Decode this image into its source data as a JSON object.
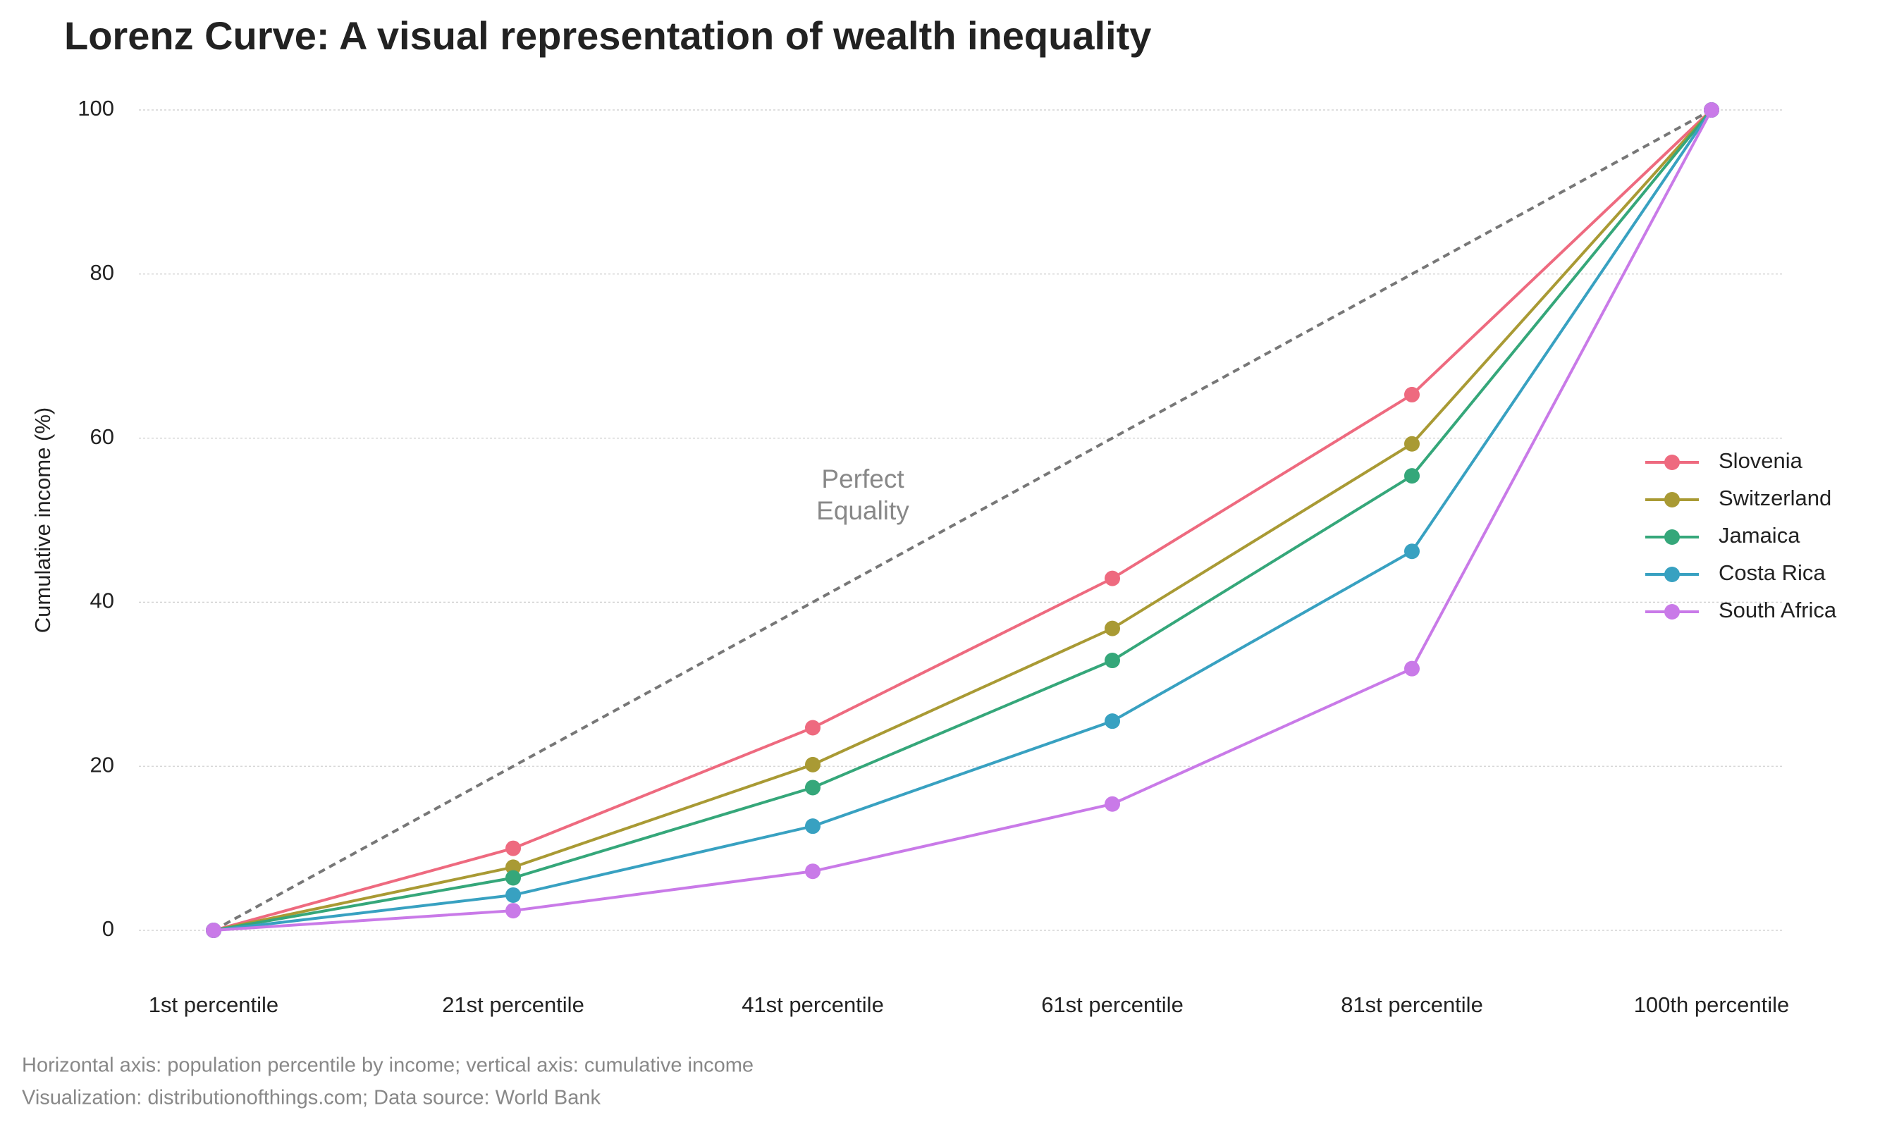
{
  "chart_data": {
    "type": "line",
    "title": "Lorenz Curve: A visual representation of wealth inequality",
    "y_label": "Cumulative income (%)",
    "categories": [
      "1st percentile",
      "21st percentile",
      "41st percentile",
      "61st percentile",
      "81st percentile",
      "100th percentile"
    ],
    "series": [
      {
        "name": "Slovenia",
        "color": "#ee6a7f",
        "values": [
          0,
          10,
          24.7,
          42.9,
          65.3,
          100
        ]
      },
      {
        "name": "Switzerland",
        "color": "#a99a34",
        "values": [
          0,
          7.7,
          20.2,
          36.8,
          59.3,
          100
        ]
      },
      {
        "name": "Jamaica",
        "color": "#35a77a",
        "values": [
          0,
          6.4,
          17.4,
          32.9,
          55.4,
          100
        ]
      },
      {
        "name": "Costa Rica",
        "color": "#38a1c1",
        "values": [
          0,
          4.3,
          12.7,
          25.5,
          46.2,
          100
        ]
      },
      {
        "name": "South Africa",
        "color": "#c97ae8",
        "values": [
          0,
          2.4,
          7.2,
          15.4,
          31.9,
          100
        ]
      }
    ],
    "equality_line": {
      "values": [
        0,
        20,
        40,
        60,
        80,
        100
      ],
      "color": "#777777",
      "annotation": [
        "Perfect",
        "Equality"
      ]
    },
    "ylim": [
      -5,
      100
    ],
    "yticks": [
      0,
      20,
      40,
      60,
      80,
      100
    ],
    "grid": true,
    "legend": "right",
    "footnotes": [
      "Horizontal axis: population percentile by income; vertical axis: cumulative income",
      "Visualization: distributionofthings.com; Data source: World Bank"
    ]
  }
}
